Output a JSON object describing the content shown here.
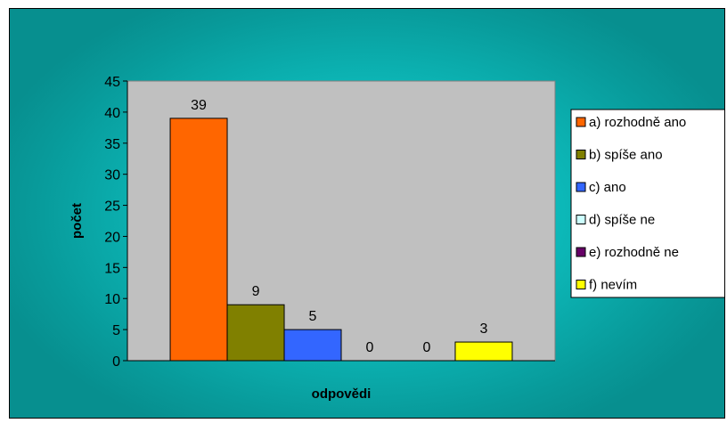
{
  "chart_data": {
    "type": "bar",
    "title": "",
    "xlabel": "odpovědi",
    "ylabel": "počet",
    "ylim": [
      0,
      45
    ],
    "yticks": [
      0,
      5,
      10,
      15,
      20,
      25,
      30,
      35,
      40,
      45
    ],
    "grid": false,
    "legend_position": "right",
    "series": [
      {
        "name": "a) rozhodně ano",
        "value": 39,
        "color": "#ff6600"
      },
      {
        "name": "b) spíše ano",
        "value": 9,
        "color": "#808000"
      },
      {
        "name": "c) ano",
        "value": 5,
        "color": "#3366ff"
      },
      {
        "name": "d) spíše ne",
        "value": 0,
        "color": "#ccffff"
      },
      {
        "name": "e) rozhodně ne",
        "value": 0,
        "color": "#660066"
      },
      {
        "name": "f) nevím",
        "value": 3,
        "color": "#ffff00"
      }
    ]
  },
  "colors": {
    "plot_background": "#c0c0c0",
    "chart_background": "#0dbcbc"
  }
}
